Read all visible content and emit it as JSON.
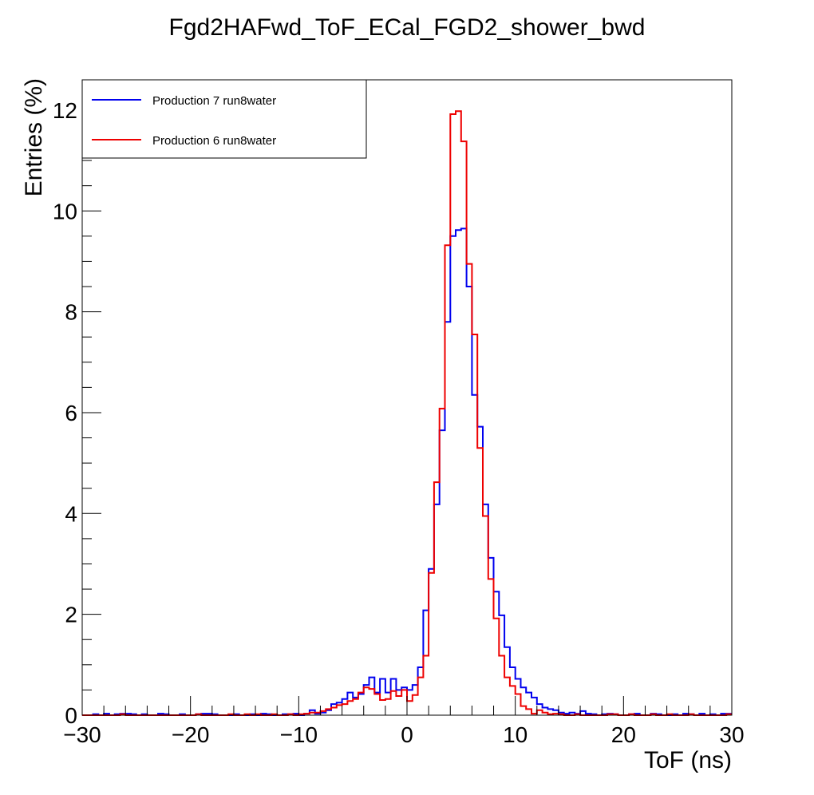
{
  "chart_data": {
    "type": "line",
    "title": "Fgd2HAFwd_ToF_ECal_FGD2_shower_bwd",
    "xlabel": "ToF (ns)",
    "ylabel": "Entries (%)",
    "xlim": [
      -30,
      30
    ],
    "ylim": [
      0,
      12.6
    ],
    "grid": false,
    "legend_position": "top-left",
    "x_ticks": [
      -30,
      -20,
      -10,
      0,
      10,
      20,
      30
    ],
    "x_tick_labels": [
      "−30",
      "−20",
      "−10",
      "0",
      "10",
      "20",
      "30"
    ],
    "y_ticks": [
      0,
      2,
      4,
      6,
      8,
      10,
      12
    ],
    "y_tick_labels": [
      "0",
      "2",
      "4",
      "6",
      "8",
      "10",
      "12"
    ],
    "bin_edges": {
      "start": -30,
      "width": 0.5,
      "count": 120
    },
    "series": [
      {
        "name": "Production 7 run8water",
        "color": "#0000ee",
        "values": [
          0,
          0,
          0.02,
          0,
          0.03,
          0,
          0.02,
          0.03,
          0.03,
          0.02,
          0,
          0.02,
          0,
          0,
          0.03,
          0.02,
          0,
          0,
          0.02,
          0,
          0,
          0.02,
          0.03,
          0.03,
          0.02,
          0,
          0,
          0,
          0.02,
          0,
          0,
          0.02,
          0,
          0.03,
          0.02,
          0,
          0,
          0.02,
          0.02,
          0.03,
          0,
          0.03,
          0.1,
          0.03,
          0.05,
          0.1,
          0.22,
          0.25,
          0.32,
          0.45,
          0.35,
          0.42,
          0.6,
          0.75,
          0.45,
          0.72,
          0.45,
          0.72,
          0.5,
          0.55,
          0.5,
          0.6,
          0.95,
          2.08,
          2.9,
          4.18,
          5.65,
          7.8,
          9.5,
          9.62,
          9.65,
          8.5,
          6.35,
          5.72,
          4.18,
          3.12,
          2.45,
          1.98,
          1.35,
          0.95,
          0.72,
          0.55,
          0.45,
          0.35,
          0.22,
          0.15,
          0.12,
          0.1,
          0.05,
          0.03,
          0.05,
          0.03,
          0.08,
          0.03,
          0.02,
          0,
          0.02,
          0.03,
          0.02,
          0,
          0,
          0.02,
          0.03,
          0,
          0,
          0.03,
          0.02,
          0,
          0,
          0.02,
          0,
          0.03,
          0.02,
          0,
          0.03,
          0,
          0.02,
          0,
          0.03,
          0.03
        ]
      },
      {
        "name": "Production 6 run8water",
        "color": "#ee0000",
        "values": [
          0,
          0,
          0,
          0,
          0,
          0,
          0,
          0.02,
          0,
          0,
          0,
          0,
          0,
          0,
          0,
          0,
          0,
          0,
          0,
          0,
          0,
          0.02,
          0,
          0,
          0,
          0,
          0,
          0.02,
          0,
          0,
          0.02,
          0,
          0.02,
          0,
          0,
          0.02,
          0,
          0,
          0.02,
          0,
          0.02,
          0.03,
          0.05,
          0.05,
          0.08,
          0.12,
          0.15,
          0.2,
          0.22,
          0.28,
          0.32,
          0.45,
          0.55,
          0.52,
          0.42,
          0.3,
          0.32,
          0.48,
          0.38,
          0.5,
          0.28,
          0.4,
          0.75,
          1.18,
          2.82,
          4.62,
          6.08,
          9.32,
          11.92,
          11.98,
          11.38,
          8.95,
          7.55,
          5.3,
          3.95,
          2.7,
          1.92,
          1.18,
          0.75,
          0.58,
          0.42,
          0.18,
          0.12,
          0.03,
          0.1,
          0.05,
          0.02,
          0.03,
          0.02,
          0,
          0,
          0.02,
          0,
          0,
          0,
          0,
          0,
          0.02,
          0.02,
          0,
          0,
          0.02,
          0,
          0,
          0,
          0.02,
          0,
          0,
          0.02,
          0,
          0,
          0,
          0.02,
          0,
          0,
          0,
          0,
          0,
          0,
          0.02
        ]
      }
    ]
  }
}
